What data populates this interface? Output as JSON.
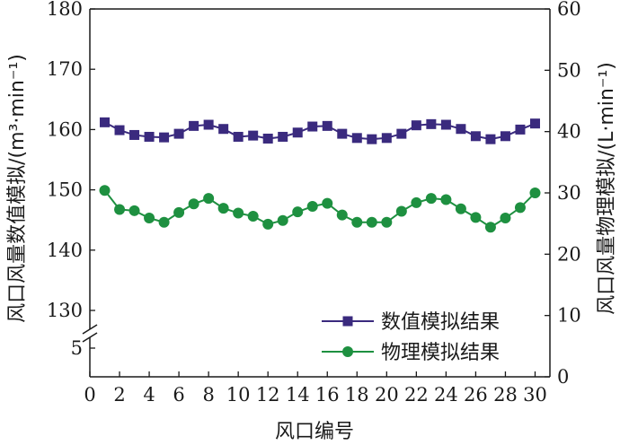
{
  "chart_data": {
    "type": "line",
    "xlabel": "风口编号",
    "ylabel_left": "风口风量数值模拟/(m³·min⁻¹)",
    "ylabel_right": "风口风量物理模拟/(L·min⁻¹)",
    "x_ticks": [
      "0",
      "2",
      "4",
      "6",
      "8",
      "10",
      "12",
      "14",
      "16",
      "18",
      "20",
      "22",
      "24",
      "26",
      "28",
      "30"
    ],
    "y_left_ticks": [
      "130",
      "140",
      "150",
      "160",
      "170",
      "180"
    ],
    "y_left_lower_ticks": [
      "5"
    ],
    "y_right_ticks": [
      "0",
      "10",
      "20",
      "30",
      "40",
      "50",
      "60"
    ],
    "y_left_range": [
      125,
      180
    ],
    "y_right_range": [
      0,
      60
    ],
    "x_range": [
      0,
      31
    ],
    "legend_position": "bottom-right",
    "series": [
      {
        "name": "数值模拟结果",
        "axis": "left",
        "color": "#3a2a7e",
        "marker": "square",
        "x": [
          1,
          2,
          3,
          4,
          5,
          6,
          7,
          8,
          9,
          10,
          11,
          12,
          13,
          14,
          15,
          16,
          17,
          18,
          19,
          20,
          21,
          22,
          23,
          24,
          25,
          26,
          27,
          28,
          29,
          30
        ],
        "values": [
          161.2,
          159.9,
          159.1,
          158.8,
          158.7,
          159.3,
          160.6,
          160.8,
          160.1,
          158.8,
          159.0,
          158.5,
          158.8,
          159.5,
          160.5,
          160.6,
          159.3,
          158.6,
          158.4,
          158.6,
          159.3,
          160.7,
          160.9,
          160.8,
          160.1,
          158.9,
          158.4,
          158.9,
          160.0,
          161.0
        ]
      },
      {
        "name": "物理模拟结果",
        "axis": "right",
        "color": "#1e9040",
        "marker": "circle",
        "x": [
          1,
          2,
          3,
          4,
          5,
          6,
          7,
          8,
          9,
          10,
          11,
          12,
          13,
          14,
          15,
          16,
          17,
          18,
          19,
          20,
          21,
          22,
          23,
          24,
          25,
          26,
          27,
          28,
          29,
          30
        ],
        "values": [
          30.4,
          27.3,
          27.1,
          25.9,
          25.2,
          26.8,
          28.2,
          29.1,
          27.5,
          26.7,
          26.2,
          24.9,
          25.5,
          26.9,
          27.8,
          28.3,
          26.4,
          25.2,
          25.2,
          25.2,
          27.0,
          28.4,
          29.1,
          28.9,
          27.4,
          26.0,
          24.4,
          25.9,
          27.6,
          30.0
        ]
      }
    ]
  }
}
